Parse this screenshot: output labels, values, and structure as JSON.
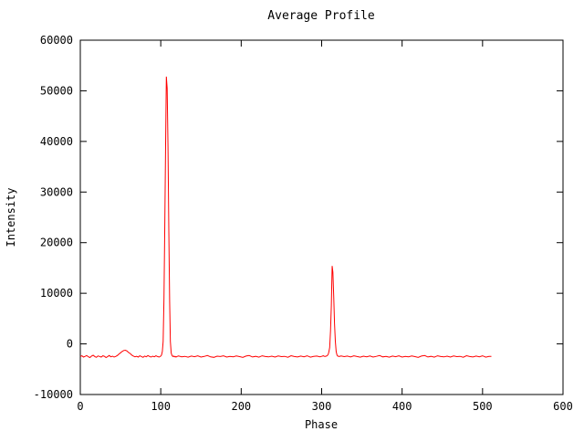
{
  "chart_data": {
    "type": "line",
    "title": "Average Profile",
    "xlabel": "Phase",
    "ylabel": "Intensity",
    "xlim": [
      0,
      600
    ],
    "ylim": [
      -10000,
      60000
    ],
    "xticks": [
      0,
      100,
      200,
      300,
      400,
      500,
      600
    ],
    "yticks": [
      -10000,
      0,
      10000,
      20000,
      30000,
      40000,
      50000,
      60000
    ],
    "grid": false,
    "legend": "none",
    "line_color": "#ff0000",
    "axis_color": "#000000",
    "series_name": "average-profile",
    "peaks": [
      {
        "x": 107,
        "y": 52800
      },
      {
        "x": 313,
        "y": 15400
      }
    ],
    "baseline_level": -2500,
    "points": [
      [
        0,
        -2500
      ],
      [
        2,
        -2350
      ],
      [
        4,
        -2600
      ],
      [
        6,
        -2450
      ],
      [
        8,
        -2300
      ],
      [
        10,
        -2550
      ],
      [
        12,
        -2700
      ],
      [
        14,
        -2400
      ],
      [
        16,
        -2250
      ],
      [
        18,
        -2500
      ],
      [
        20,
        -2650
      ],
      [
        22,
        -2380
      ],
      [
        24,
        -2480
      ],
      [
        26,
        -2600
      ],
      [
        28,
        -2350
      ],
      [
        30,
        -2450
      ],
      [
        32,
        -2700
      ],
      [
        34,
        -2500
      ],
      [
        36,
        -2300
      ],
      [
        38,
        -2550
      ],
      [
        40,
        -2420
      ],
      [
        42,
        -2600
      ],
      [
        44,
        -2480
      ],
      [
        46,
        -2300
      ],
      [
        48,
        -2000
      ],
      [
        50,
        -1750
      ],
      [
        52,
        -1500
      ],
      [
        54,
        -1300
      ],
      [
        56,
        -1250
      ],
      [
        58,
        -1400
      ],
      [
        60,
        -1700
      ],
      [
        62,
        -1900
      ],
      [
        64,
        -2200
      ],
      [
        66,
        -2400
      ],
      [
        68,
        -2550
      ],
      [
        70,
        -2450
      ],
      [
        72,
        -2600
      ],
      [
        74,
        -2350
      ],
      [
        76,
        -2500
      ],
      [
        78,
        -2650
      ],
      [
        80,
        -2400
      ],
      [
        82,
        -2550
      ],
      [
        84,
        -2300
      ],
      [
        86,
        -2480
      ],
      [
        88,
        -2600
      ],
      [
        90,
        -2420
      ],
      [
        92,
        -2550
      ],
      [
        94,
        -2350
      ],
      [
        96,
        -2500
      ],
      [
        98,
        -2600
      ],
      [
        100,
        -2400
      ],
      [
        101,
        -2200
      ],
      [
        102,
        -1500
      ],
      [
        103,
        500
      ],
      [
        104,
        9000
      ],
      [
        105,
        23500
      ],
      [
        106,
        39500
      ],
      [
        107,
        52800
      ],
      [
        108,
        50500
      ],
      [
        109,
        39000
      ],
      [
        110,
        22500
      ],
      [
        111,
        8500
      ],
      [
        112,
        500
      ],
      [
        113,
        -1800
      ],
      [
        114,
        -2300
      ],
      [
        115,
        -2500
      ],
      [
        116,
        -2400
      ],
      [
        117,
        -2550
      ],
      [
        118,
        -2450
      ],
      [
        119,
        -2600
      ],
      [
        120,
        -2500
      ],
      [
        122,
        -2380
      ],
      [
        126,
        -2550
      ],
      [
        130,
        -2450
      ],
      [
        134,
        -2620
      ],
      [
        138,
        -2400
      ],
      [
        142,
        -2530
      ],
      [
        146,
        -2350
      ],
      [
        150,
        -2600
      ],
      [
        154,
        -2480
      ],
      [
        158,
        -2300
      ],
      [
        162,
        -2560
      ],
      [
        166,
        -2650
      ],
      [
        170,
        -2420
      ],
      [
        174,
        -2500
      ],
      [
        178,
        -2350
      ],
      [
        182,
        -2600
      ],
      [
        186,
        -2470
      ],
      [
        190,
        -2550
      ],
      [
        194,
        -2380
      ],
      [
        198,
        -2520
      ],
      [
        202,
        -2650
      ],
      [
        206,
        -2400
      ],
      [
        210,
        -2300
      ],
      [
        214,
        -2580
      ],
      [
        218,
        -2450
      ],
      [
        222,
        -2620
      ],
      [
        226,
        -2350
      ],
      [
        230,
        -2500
      ],
      [
        234,
        -2570
      ],
      [
        238,
        -2430
      ],
      [
        242,
        -2600
      ],
      [
        246,
        -2380
      ],
      [
        250,
        -2520
      ],
      [
        254,
        -2450
      ],
      [
        258,
        -2640
      ],
      [
        262,
        -2330
      ],
      [
        266,
        -2500
      ],
      [
        270,
        -2580
      ],
      [
        274,
        -2400
      ],
      [
        278,
        -2550
      ],
      [
        282,
        -2350
      ],
      [
        286,
        -2620
      ],
      [
        290,
        -2480
      ],
      [
        294,
        -2400
      ],
      [
        298,
        -2540
      ],
      [
        300,
        -2450
      ],
      [
        302,
        -2350
      ],
      [
        304,
        -2500
      ],
      [
        306,
        -2400
      ],
      [
        307,
        -2300
      ],
      [
        308,
        -2100
      ],
      [
        309,
        -1600
      ],
      [
        310,
        -700
      ],
      [
        311,
        2500
      ],
      [
        312,
        7500
      ],
      [
        313,
        15400
      ],
      [
        314,
        14200
      ],
      [
        315,
        9500
      ],
      [
        316,
        4000
      ],
      [
        317,
        500
      ],
      [
        318,
        -1500
      ],
      [
        319,
        -2200
      ],
      [
        320,
        -2400
      ],
      [
        322,
        -2500
      ],
      [
        324,
        -2380
      ],
      [
        328,
        -2520
      ],
      [
        332,
        -2400
      ],
      [
        336,
        -2580
      ],
      [
        340,
        -2350
      ],
      [
        344,
        -2500
      ],
      [
        348,
        -2630
      ],
      [
        352,
        -2420
      ],
      [
        356,
        -2550
      ],
      [
        360,
        -2380
      ],
      [
        364,
        -2600
      ],
      [
        368,
        -2450
      ],
      [
        372,
        -2300
      ],
      [
        376,
        -2560
      ],
      [
        380,
        -2480
      ],
      [
        384,
        -2620
      ],
      [
        388,
        -2400
      ],
      [
        392,
        -2530
      ],
      [
        396,
        -2350
      ],
      [
        400,
        -2600
      ],
      [
        404,
        -2470
      ],
      [
        408,
        -2550
      ],
      [
        412,
        -2380
      ],
      [
        416,
        -2520
      ],
      [
        420,
        -2650
      ],
      [
        424,
        -2400
      ],
      [
        428,
        -2300
      ],
      [
        432,
        -2580
      ],
      [
        436,
        -2450
      ],
      [
        440,
        -2620
      ],
      [
        444,
        -2350
      ],
      [
        448,
        -2500
      ],
      [
        452,
        -2570
      ],
      [
        456,
        -2430
      ],
      [
        460,
        -2600
      ],
      [
        464,
        -2380
      ],
      [
        468,
        -2520
      ],
      [
        472,
        -2450
      ],
      [
        476,
        -2640
      ],
      [
        480,
        -2330
      ],
      [
        484,
        -2500
      ],
      [
        488,
        -2580
      ],
      [
        492,
        -2400
      ],
      [
        496,
        -2550
      ],
      [
        500,
        -2350
      ],
      [
        504,
        -2620
      ],
      [
        508,
        -2480
      ],
      [
        511,
        -2450
      ]
    ]
  }
}
